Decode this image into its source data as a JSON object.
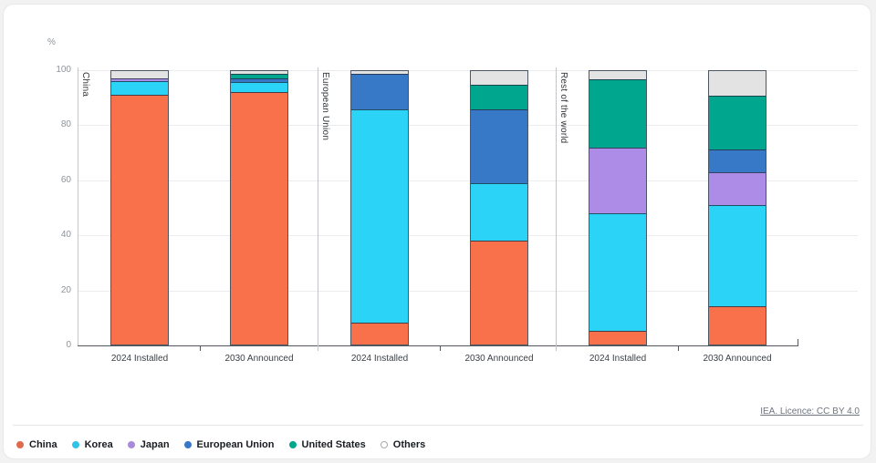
{
  "unit_label": "%",
  "attribution": "IEA. Licence: CC BY 4.0",
  "colors": {
    "China": "#F8714B",
    "Korea": "#2BD4F7",
    "Japan": "#AC8CE6",
    "European Union": "#3779C6",
    "United States": "#00A78E",
    "Others": "#E4E3E4",
    "segment_border": "rgba(30,45,62,0.8)",
    "axis": "#55595f",
    "grid": "#ececee"
  },
  "legend": {
    "items": [
      {
        "label": "China",
        "fill": "#E06A4E",
        "stroke": "#E06A4E"
      },
      {
        "label": "Korea",
        "fill": "#30C2E8",
        "stroke": "#30C2E8"
      },
      {
        "label": "Japan",
        "fill": "#A98BDC",
        "stroke": "#A98BDC"
      },
      {
        "label": "European Union",
        "fill": "#3779C6",
        "stroke": "#3779C6"
      },
      {
        "label": "United States",
        "fill": "#00A78E",
        "stroke": "#00A78E"
      },
      {
        "label": "Others",
        "fill": "#ffffff",
        "stroke": "#a6abb0"
      }
    ]
  },
  "chart_data": {
    "type": "bar",
    "stacked": true,
    "title": "",
    "ylabel": "%",
    "ylim": [
      0,
      100
    ],
    "yticks": [
      0,
      20,
      40,
      60,
      80,
      100
    ],
    "grid": true,
    "legend_position": "bottom",
    "series_order_bottom_to_top": [
      "China",
      "Korea",
      "Japan",
      "European Union",
      "United States",
      "Others"
    ],
    "groups": [
      {
        "label": "China",
        "bars": [
          {
            "label": "2024 Installed",
            "values": {
              "China": 91.5,
              "Korea": 5,
              "Japan": 1,
              "European Union": 0,
              "United States": 0,
              "Others": 2.5
            }
          },
          {
            "label": "2030 Announced",
            "values": {
              "China": 92.5,
              "Korea": 3.5,
              "Japan": 0,
              "European Union": 1.5,
              "United States": 1.5,
              "Others": 1
            }
          }
        ]
      },
      {
        "label": "European Union",
        "bars": [
          {
            "label": "2024 Installed",
            "values": {
              "China": 8,
              "Korea": 78,
              "Japan": 0,
              "European Union": 13,
              "United States": 0,
              "Others": 1
            }
          },
          {
            "label": "2030 Announced",
            "values": {
              "China": 38,
              "Korea": 21,
              "Japan": 0,
              "European Union": 27,
              "United States": 9,
              "Others": 5
            }
          }
        ]
      },
      {
        "label": "Rest of the world",
        "bars": [
          {
            "label": "2024 Installed",
            "values": {
              "China": 5,
              "Korea": 43,
              "Japan": 24,
              "European Union": 0,
              "United States": 25,
              "Others": 3
            }
          },
          {
            "label": "2030 Announced",
            "values": {
              "China": 14,
              "Korea": 37,
              "Japan": 12,
              "European Union": 8.5,
              "United States": 19.5,
              "Others": 9
            }
          }
        ]
      }
    ]
  }
}
